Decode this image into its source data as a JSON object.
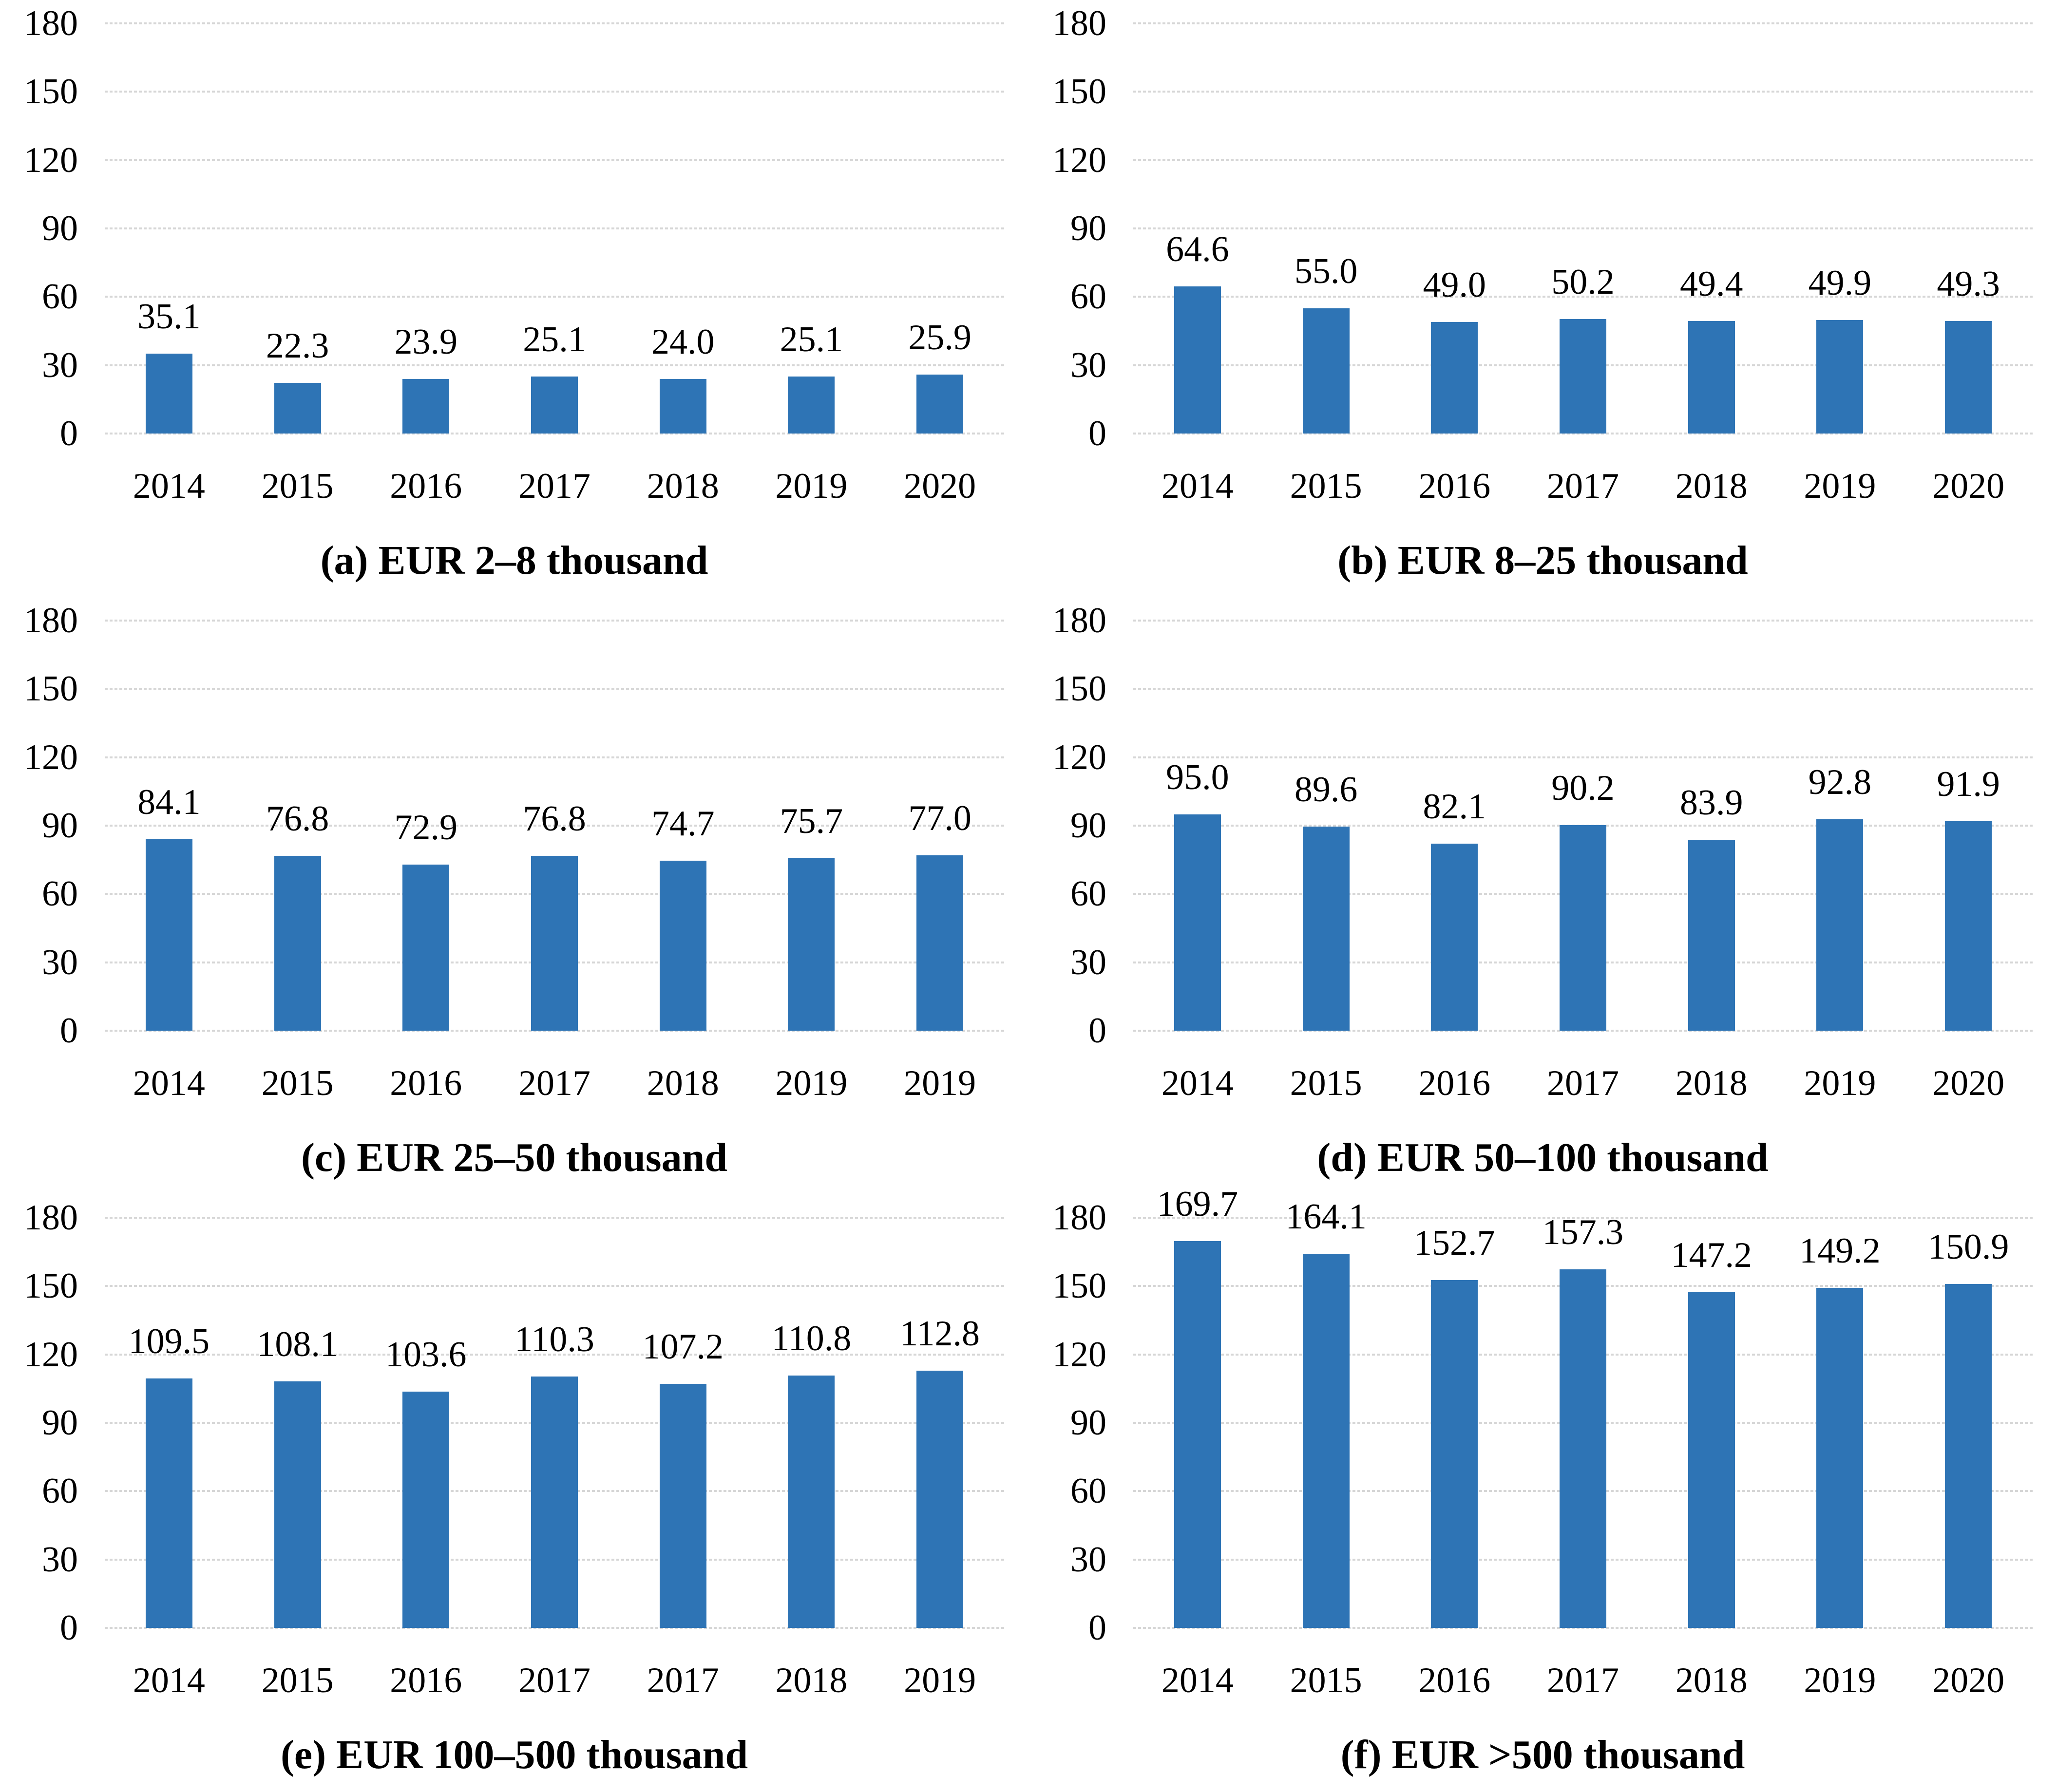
{
  "figure": {
    "colors": {
      "bar": "#2E74B5",
      "gridline": "#D6D6D6",
      "text": "#000000"
    }
  },
  "chart_data": [
    {
      "panel": "a",
      "type": "bar",
      "caption": "(a) EUR 2–8 thousand",
      "categories": [
        "2014",
        "2015",
        "2016",
        "2017",
        "2018",
        "2019",
        "2020"
      ],
      "values": [
        35.1,
        22.3,
        23.9,
        25.1,
        24.0,
        25.1,
        25.9
      ],
      "value_labels": [
        "35.1",
        "22.3",
        "23.9",
        "25.1",
        "24.0",
        "25.1",
        "25.9"
      ],
      "ylim": [
        0,
        180
      ],
      "yticks": [
        0,
        30,
        60,
        90,
        120,
        150,
        180
      ],
      "grid": true,
      "legend": "none"
    },
    {
      "panel": "b",
      "type": "bar",
      "caption": "(b) EUR 8–25 thousand",
      "categories": [
        "2014",
        "2015",
        "2016",
        "2017",
        "2018",
        "2019",
        "2020"
      ],
      "values": [
        64.6,
        55.0,
        49.0,
        50.2,
        49.4,
        49.9,
        49.3
      ],
      "value_labels": [
        "64.6",
        "55.0",
        "49.0",
        "50.2",
        "49.4",
        "49.9",
        "49.3"
      ],
      "ylim": [
        0,
        180
      ],
      "yticks": [
        0,
        30,
        60,
        90,
        120,
        150,
        180
      ],
      "grid": true,
      "legend": "none"
    },
    {
      "panel": "c",
      "type": "bar",
      "caption": "(c) EUR 25–50 thousand",
      "categories": [
        "2014",
        "2015",
        "2016",
        "2017",
        "2018",
        "2019",
        "2019"
      ],
      "values": [
        84.1,
        76.8,
        72.9,
        76.8,
        74.7,
        75.7,
        77.0
      ],
      "value_labels": [
        "84.1",
        "76.8",
        "72.9",
        "76.8",
        "74.7",
        "75.7",
        "77.0"
      ],
      "ylim": [
        0,
        180
      ],
      "yticks": [
        0,
        30,
        60,
        90,
        120,
        150,
        180
      ],
      "grid": true,
      "legend": "none"
    },
    {
      "panel": "d",
      "type": "bar",
      "caption": "(d) EUR 50–100 thousand",
      "categories": [
        "2014",
        "2015",
        "2016",
        "2017",
        "2018",
        "2019",
        "2020"
      ],
      "values": [
        95.0,
        89.6,
        82.1,
        90.2,
        83.9,
        92.8,
        91.9
      ],
      "value_labels": [
        "95.0",
        "89.6",
        "82.1",
        "90.2",
        "83.9",
        "92.8",
        "91.9"
      ],
      "ylim": [
        0,
        180
      ],
      "yticks": [
        0,
        30,
        60,
        90,
        120,
        150,
        180
      ],
      "grid": true,
      "legend": "none"
    },
    {
      "panel": "e",
      "type": "bar",
      "caption": "(e) EUR 100–500 thousand",
      "categories": [
        "2014",
        "2015",
        "2016",
        "2017",
        "2017",
        "2018",
        "2019"
      ],
      "values": [
        109.5,
        108.1,
        103.6,
        110.3,
        107.2,
        110.8,
        112.8
      ],
      "value_labels": [
        "109.5",
        "108.1",
        "103.6",
        "110.3",
        "107.2",
        "110.8",
        "112.8"
      ],
      "ylim": [
        0,
        180
      ],
      "yticks": [
        0,
        30,
        60,
        90,
        120,
        150,
        180
      ],
      "grid": true,
      "legend": "none"
    },
    {
      "panel": "f",
      "type": "bar",
      "caption": "(f) EUR >500 thousand",
      "categories": [
        "2014",
        "2015",
        "2016",
        "2017",
        "2018",
        "2019",
        "2020"
      ],
      "values": [
        169.7,
        164.1,
        152.7,
        157.3,
        147.2,
        149.2,
        150.9
      ],
      "value_labels": [
        "169.7",
        "164.1",
        "152.7",
        "157.3",
        "147.2",
        "149.2",
        "150.9"
      ],
      "ylim": [
        0,
        180
      ],
      "yticks": [
        0,
        30,
        60,
        90,
        120,
        150,
        180
      ],
      "grid": true,
      "legend": "none"
    }
  ]
}
